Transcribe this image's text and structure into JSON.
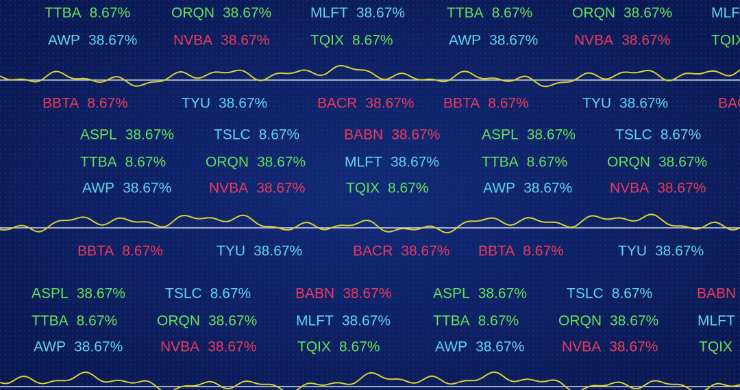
{
  "rows": [
    {
      "items": [
        {
          "symbol": "TTBA",
          "change": "8.67%",
          "color": "#62e35a"
        },
        {
          "symbol": "ORQN",
          "change": "38.67%",
          "color": "#62e35a"
        },
        {
          "symbol": "MLFT",
          "change": "38.67%",
          "color": "#5fd6ea"
        },
        {
          "symbol": "TTBA",
          "change": "8.67%",
          "color": "#62e35a"
        },
        {
          "symbol": "ORQN",
          "change": "38.67%",
          "color": "#62e35a"
        },
        {
          "symbol": "MLFT",
          "color": "#5fd6ea"
        }
      ]
    },
    {
      "items": [
        {
          "symbol": "AWP",
          "change": "38.67%",
          "color": "#5fd6ea"
        },
        {
          "symbol": "NVBA",
          "change": "38.67%",
          "color": "#ec3a5c"
        },
        {
          "symbol": "TQIX",
          "change": "8.67%",
          "color": "#62e35a"
        },
        {
          "symbol": "AWP",
          "change": "38.67%",
          "color": "#5fd6ea"
        },
        {
          "symbol": "NVBA",
          "change": "38.67%",
          "color": "#ec3a5c"
        },
        {
          "symbol": "TQIX",
          "color": "#62e35a"
        }
      ]
    },
    {
      "items": [
        {
          "symbol": "BBTA",
          "change": "8.67%",
          "color": "#ec3a5c"
        },
        {
          "symbol": "TYU",
          "change": "38.67%",
          "color": "#5fd6ea"
        },
        {
          "symbol": "BACR",
          "change": "38.67%",
          "color": "#ec3a5c"
        },
        {
          "symbol": "BBTA",
          "change": "8.67%",
          "color": "#ec3a5c"
        },
        {
          "symbol": "TYU",
          "change": "38.67%",
          "color": "#5fd6ea"
        },
        {
          "symbol": "BACR",
          "color": "#ec3a5c"
        }
      ]
    },
    {
      "items": [
        {
          "symbol": "ASPL",
          "change": "38.67%",
          "color": "#62e35a"
        },
        {
          "symbol": "TSLC",
          "change": "8.67%",
          "color": "#5fd6ea"
        },
        {
          "symbol": "BABN",
          "change": "38.67%",
          "color": "#ec3a5c"
        },
        {
          "symbol": "ASPL",
          "change": "38.67%",
          "color": "#62e35a"
        },
        {
          "symbol": "TSLC",
          "change": "8.67%",
          "color": "#5fd6ea"
        }
      ]
    },
    {
      "items": [
        {
          "symbol": "TTBA",
          "change": "8.67%",
          "color": "#62e35a"
        },
        {
          "symbol": "ORQN",
          "change": "38.67%",
          "color": "#62e35a"
        },
        {
          "symbol": "MLFT",
          "change": "38.67%",
          "color": "#5fd6ea"
        },
        {
          "symbol": "TTBA",
          "change": "8.67%",
          "color": "#62e35a"
        },
        {
          "symbol": "ORQN",
          "change": "38.67%",
          "color": "#62e35a"
        }
      ]
    },
    {
      "items": [
        {
          "symbol": "AWP",
          "change": "38.67%",
          "color": "#5fd6ea"
        },
        {
          "symbol": "NVBA",
          "change": "38.67%",
          "color": "#ec3a5c"
        },
        {
          "symbol": "TQIX",
          "change": "8.67%",
          "color": "#62e35a"
        },
        {
          "symbol": "AWP",
          "change": "38.67%",
          "color": "#5fd6ea"
        },
        {
          "symbol": "NVBA",
          "change": "38.67%",
          "color": "#ec3a5c"
        }
      ]
    },
    {
      "items": [
        {
          "symbol": "BBTA",
          "change": "8.67%",
          "color": "#ec3a5c"
        },
        {
          "symbol": "TYU",
          "change": "38.67%",
          "color": "#5fd6ea"
        },
        {
          "symbol": "BACR",
          "change": "38.67%",
          "color": "#ec3a5c"
        },
        {
          "symbol": "BBTA",
          "change": "8.67%",
          "color": "#ec3a5c"
        },
        {
          "symbol": "TYU",
          "change": "38.67%",
          "color": "#5fd6ea"
        }
      ]
    },
    {
      "items": [
        {
          "symbol": "ASPL",
          "change": "38.67%",
          "color": "#62e35a"
        },
        {
          "symbol": "TSLC",
          "change": "8.67%",
          "color": "#5fd6ea"
        },
        {
          "symbol": "BABN",
          "change": "38.67%",
          "color": "#ec3a5c"
        },
        {
          "symbol": "ASPL",
          "change": "38.67%",
          "color": "#62e35a"
        },
        {
          "symbol": "TSLC",
          "change": "8.67%",
          "color": "#5fd6ea"
        },
        {
          "symbol": "BABN",
          "color": "#ec3a5c"
        }
      ]
    },
    {
      "items": [
        {
          "symbol": "TTBA",
          "change": "8.67%",
          "color": "#62e35a"
        },
        {
          "symbol": "ORQN",
          "change": "38.67%",
          "color": "#62e35a"
        },
        {
          "symbol": "MLFT",
          "change": "38.67%",
          "color": "#5fd6ea"
        },
        {
          "symbol": "TTBA",
          "change": "8.67%",
          "color": "#62e35a"
        },
        {
          "symbol": "ORQN",
          "change": "38.67%",
          "color": "#62e35a"
        },
        {
          "symbol": "MLFT",
          "color": "#5fd6ea"
        }
      ]
    },
    {
      "items": [
        {
          "symbol": "AWP",
          "change": "38.67%",
          "color": "#5fd6ea"
        },
        {
          "symbol": "NVBA",
          "change": "38.67%",
          "color": "#ec3a5c"
        },
        {
          "symbol": "TQIX",
          "change": "8.67%",
          "color": "#62e35a"
        },
        {
          "symbol": "AWP",
          "change": "38.67%",
          "color": "#5fd6ea"
        },
        {
          "symbol": "NVBA",
          "change": "38.67%",
          "color": "#ec3a5c"
        },
        {
          "symbol": "TQIX",
          "color": "#62e35a"
        }
      ]
    }
  ]
}
